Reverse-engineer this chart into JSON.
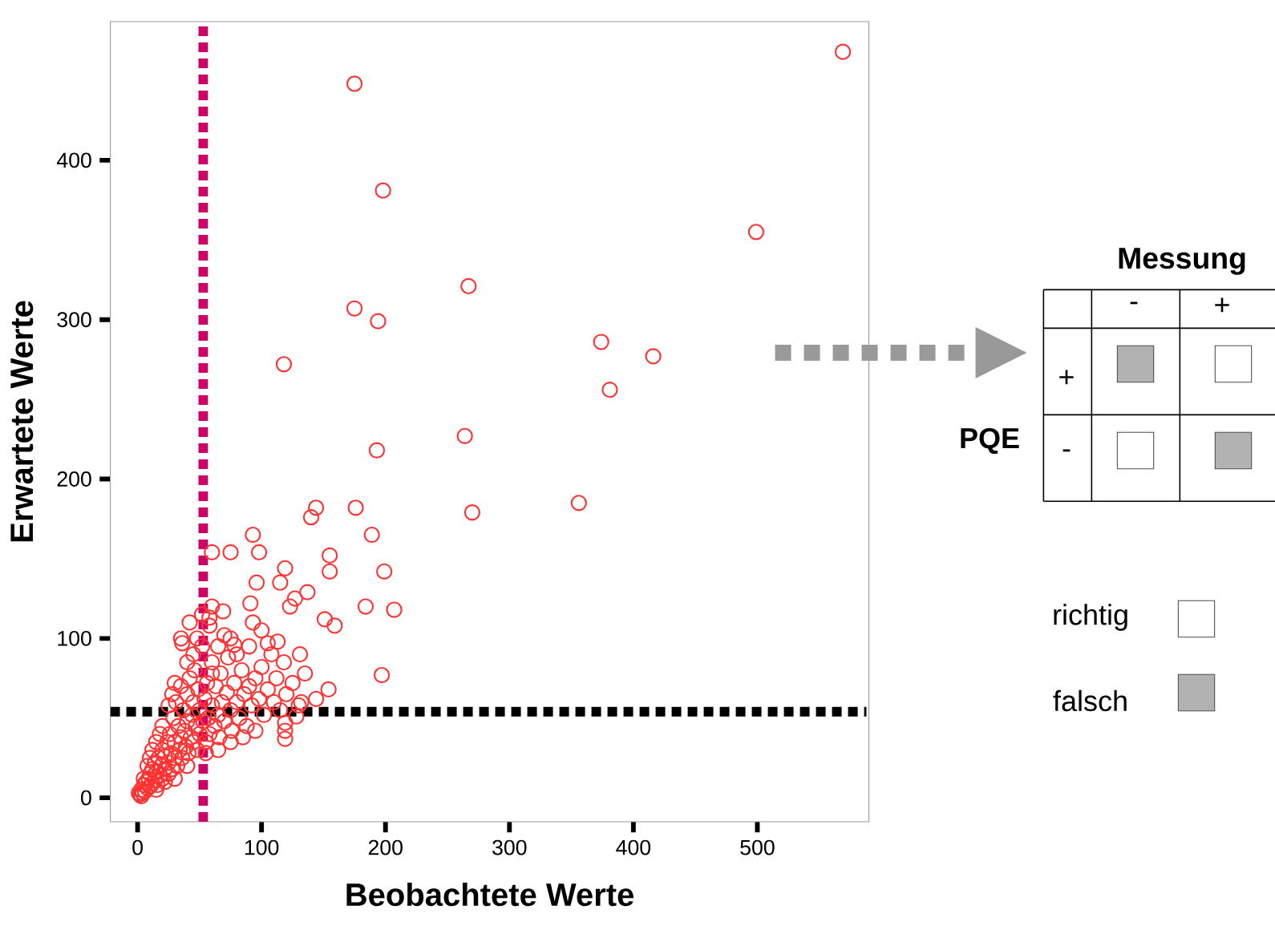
{
  "chart_data": [
    {
      "type": "scatter",
      "xlabel": "Beobachtete Werte",
      "ylabel": "Erwartete Werte",
      "xlim": [
        -22,
        590
      ],
      "ylim": [
        -15,
        487
      ],
      "xticks": [
        0,
        100,
        200,
        300,
        400,
        500
      ],
      "yticks": [
        0,
        100,
        200,
        300,
        400
      ],
      "marker": "circle",
      "color": "#ff3333",
      "x": [
        569,
        175,
        198,
        499,
        267,
        175,
        194,
        374,
        416,
        118,
        381,
        264,
        193,
        270,
        356,
        176,
        144,
        140,
        189,
        93,
        199,
        155,
        155,
        119,
        98,
        75,
        60,
        151,
        159,
        207,
        184,
        197,
        127,
        123,
        91,
        137,
        115,
        96,
        113,
        131,
        93,
        69,
        58,
        78,
        36,
        154,
        144,
        119,
        119,
        119,
        132,
        128,
        2,
        3,
        4,
        5,
        6,
        7,
        8,
        9,
        10,
        10,
        12,
        12,
        14,
        14,
        15,
        16,
        17,
        18,
        19,
        20,
        20,
        22,
        22,
        24,
        25,
        25,
        26,
        27,
        28,
        29,
        30,
        30,
        31,
        32,
        33,
        34,
        35,
        35,
        36,
        37,
        38,
        39,
        40,
        40,
        41,
        42,
        43,
        44,
        45,
        45,
        46,
        47,
        48,
        49,
        50,
        50,
        52,
        53,
        54,
        55,
        56,
        57,
        58,
        60,
        60,
        62,
        63,
        65,
        66,
        67,
        68,
        70,
        72,
        73,
        75,
        76,
        78,
        80,
        82,
        84,
        86,
        88,
        90,
        92,
        95,
        98,
        100,
        102,
        105,
        108,
        110,
        112,
        115,
        118,
        120,
        125,
        130,
        135,
        52,
        48,
        40,
        30,
        25,
        20,
        15,
        35,
        58,
        65,
        70,
        80,
        90,
        100,
        105,
        18,
        10,
        8,
        5,
        3,
        1,
        15,
        22,
        30,
        40,
        55,
        65,
        75,
        85,
        95,
        12,
        28,
        45,
        60,
        42,
        60,
        75
      ],
      "values": [
        468,
        448,
        381,
        355,
        321,
        307,
        299,
        286,
        277,
        272,
        256,
        227,
        218,
        179,
        185,
        182,
        182,
        176,
        165,
        165,
        142,
        152,
        142,
        144,
        154,
        154,
        154,
        112,
        108,
        118,
        120,
        77,
        125,
        120,
        122,
        129,
        135,
        135,
        98,
        90,
        110,
        117,
        113,
        96,
        97,
        68,
        62,
        47,
        42,
        37,
        60,
        51,
        2,
        5,
        3,
        8,
        4,
        10,
        6,
        12,
        7,
        15,
        9,
        18,
        11,
        22,
        16,
        8,
        25,
        14,
        20,
        12,
        30,
        18,
        26,
        35,
        15,
        22,
        40,
        28,
        18,
        50,
        25,
        35,
        60,
        20,
        45,
        30,
        70,
        38,
        25,
        55,
        42,
        32,
        48,
        65,
        28,
        75,
        38,
        52,
        35,
        60,
        80,
        45,
        30,
        68,
        40,
        55,
        95,
        48,
        62,
        35,
        72,
        50,
        40,
        58,
        85,
        45,
        70,
        52,
        38,
        78,
        60,
        48,
        66,
        88,
        55,
        42,
        72,
        60,
        50,
        80,
        65,
        45,
        70,
        58,
        75,
        62,
        82,
        52,
        68,
        90,
        60,
        75,
        55,
        85,
        65,
        72,
        58,
        78,
        115,
        100,
        85,
        72,
        58,
        45,
        35,
        100,
        108,
        95,
        102,
        90,
        95,
        105,
        97,
        40,
        25,
        20,
        12,
        1,
        3,
        5,
        10,
        12,
        20,
        28,
        30,
        35,
        38,
        42,
        30,
        65,
        90,
        78,
        110,
        120,
        100
      ],
      "ref_lines": [
        {
          "axis": "x",
          "value": 53,
          "color": "#cc0066",
          "line_style": "dotted"
        },
        {
          "axis": "y",
          "value": 54,
          "color": "#000000",
          "line_style": "dotted"
        }
      ]
    },
    {
      "type": "other",
      "title": "Messung",
      "annotations": [
        "-",
        "+",
        "+",
        "-",
        "PQE",
        "richtig",
        "falsch"
      ]
    }
  ]
}
